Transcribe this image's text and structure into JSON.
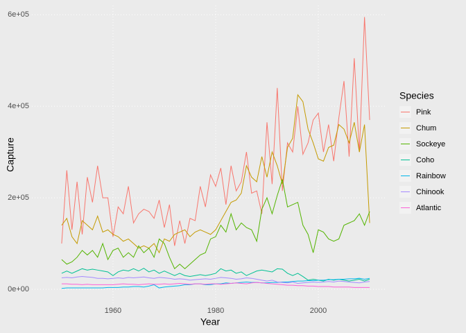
{
  "chart_data": {
    "type": "line",
    "x_label": "Year",
    "y_label": "Capture",
    "legend_title": "Species",
    "legend": "right",
    "grid": true,
    "xlim": [
      1944.2,
      2013.1
    ],
    "xticks": [
      1960,
      1980,
      2000
    ],
    "ylim": [
      -31800,
      620000
    ],
    "yticks": [
      {
        "value": 0,
        "label": "0e+00"
      },
      {
        "value": 200000,
        "label": "2e+05"
      },
      {
        "value": 400000,
        "label": "4e+05"
      },
      {
        "value": 600000,
        "label": "6e+05"
      }
    ],
    "x": [
      1950,
      1951,
      1952,
      1953,
      1954,
      1955,
      1956,
      1957,
      1958,
      1959,
      1960,
      1961,
      1962,
      1963,
      1964,
      1965,
      1966,
      1967,
      1968,
      1969,
      1970,
      1971,
      1972,
      1973,
      1974,
      1975,
      1976,
      1977,
      1978,
      1979,
      1980,
      1981,
      1982,
      1983,
      1984,
      1985,
      1986,
      1987,
      1988,
      1989,
      1990,
      1991,
      1992,
      1993,
      1994,
      1995,
      1996,
      1997,
      1998,
      1999,
      2000,
      2001,
      2002,
      2003,
      2004,
      2005,
      2006,
      2007,
      2008,
      2009,
      2010
    ],
    "series": [
      {
        "name": "Pink",
        "color": "#F8766D",
        "values": [
          100000,
          260000,
          130000,
          235000,
          120000,
          245000,
          190000,
          270000,
          200000,
          200000,
          115000,
          180000,
          165000,
          225000,
          145000,
          165000,
          175000,
          170000,
          155000,
          195000,
          135000,
          185000,
          95000,
          150000,
          100000,
          155000,
          150000,
          225000,
          180000,
          250000,
          225000,
          265000,
          185000,
          270000,
          215000,
          235000,
          300000,
          210000,
          215000,
          165000,
          365000,
          230000,
          440000,
          215000,
          320000,
          300000,
          400000,
          295000,
          320000,
          370000,
          385000,
          300000,
          360000,
          280000,
          375000,
          455000,
          290000,
          505000,
          300000,
          595000,
          370000
        ]
      },
      {
        "name": "Chum",
        "color": "#C49A00",
        "values": [
          140000,
          155000,
          115000,
          100000,
          150000,
          140000,
          130000,
          160000,
          125000,
          130000,
          120000,
          115000,
          105000,
          110000,
          100000,
          90000,
          95000,
          90000,
          100000,
          80000,
          110000,
          105000,
          120000,
          125000,
          130000,
          115000,
          125000,
          130000,
          125000,
          120000,
          130000,
          150000,
          170000,
          190000,
          195000,
          210000,
          270000,
          245000,
          235000,
          290000,
          245000,
          300000,
          270000,
          230000,
          310000,
          330000,
          425000,
          410000,
          350000,
          320000,
          285000,
          280000,
          310000,
          315000,
          360000,
          350000,
          320000,
          365000,
          300000,
          360000,
          145000
        ]
      },
      {
        "name": "Sockeye",
        "color": "#53B400",
        "values": [
          65000,
          55000,
          60000,
          70000,
          85000,
          75000,
          85000,
          70000,
          100000,
          65000,
          85000,
          90000,
          70000,
          80000,
          70000,
          95000,
          80000,
          90000,
          70000,
          110000,
          100000,
          70000,
          45000,
          55000,
          45000,
          55000,
          65000,
          75000,
          80000,
          110000,
          115000,
          140000,
          125000,
          165000,
          130000,
          145000,
          135000,
          130000,
          105000,
          175000,
          200000,
          165000,
          205000,
          240000,
          180000,
          185000,
          190000,
          140000,
          120000,
          80000,
          130000,
          125000,
          110000,
          105000,
          110000,
          140000,
          145000,
          150000,
          165000,
          140000,
          170000
        ]
      },
      {
        "name": "Coho",
        "color": "#00C094",
        "values": [
          35000,
          40000,
          35000,
          40000,
          45000,
          42000,
          44000,
          42000,
          40000,
          38000,
          30000,
          38000,
          42000,
          40000,
          45000,
          40000,
          46000,
          38000,
          42000,
          35000,
          40000,
          35000,
          30000,
          35000,
          30000,
          28000,
          30000,
          32000,
          30000,
          32000,
          35000,
          45000,
          40000,
          42000,
          35000,
          38000,
          30000,
          35000,
          40000,
          42000,
          40000,
          38000,
          45000,
          44000,
          35000,
          30000,
          35000,
          28000,
          20000,
          22000,
          20000,
          18000,
          22000,
          20000,
          22000,
          20000,
          18000,
          20000,
          22000,
          18000,
          22000
        ]
      },
      {
        "name": "Rainbow",
        "color": "#00B6EB",
        "values": [
          2000,
          3000,
          3000,
          3000,
          3000,
          3000,
          3000,
          3000,
          3000,
          4000,
          4000,
          4000,
          5000,
          5000,
          6000,
          6000,
          5000,
          7000,
          10000,
          3000,
          5000,
          6000,
          7000,
          8000,
          10000,
          10000,
          12000,
          12000,
          10000,
          10000,
          12000,
          12000,
          14000,
          13000,
          14000,
          15000,
          16000,
          15000,
          15000,
          14000,
          14000,
          15000,
          15000,
          16000,
          16000,
          17000,
          18000,
          18000,
          19000,
          19000,
          20000,
          20000,
          21000,
          21000,
          22000,
          22000,
          23000,
          23000,
          24000,
          22000,
          24000
        ]
      },
      {
        "name": "Chinook",
        "color": "#A58AFF",
        "values": [
          25000,
          26000,
          25000,
          27000,
          28000,
          27000,
          26000,
          24000,
          24000,
          23000,
          24000,
          25000,
          24000,
          26000,
          25000,
          26000,
          27000,
          25000,
          24000,
          26000,
          25000,
          24000,
          22000,
          23000,
          22000,
          20000,
          21000,
          22000,
          23000,
          22000,
          24000,
          26000,
          25000,
          24000,
          22000,
          23000,
          25000,
          24000,
          22000,
          20000,
          18000,
          20000,
          16000,
          15000,
          14000,
          16000,
          13000,
          14000,
          15000,
          16000,
          15000,
          16000,
          17000,
          16000,
          18000,
          17000,
          16000,
          15000,
          14000,
          16000,
          17000
        ]
      },
      {
        "name": "Atlantic",
        "color": "#FB61D7",
        "values": [
          12000,
          12000,
          11000,
          11000,
          10000,
          11000,
          10000,
          10000,
          10000,
          10000,
          10000,
          11000,
          12000,
          11000,
          11000,
          10000,
          11000,
          12000,
          11000,
          11000,
          12000,
          11000,
          12000,
          13000,
          12000,
          11000,
          12000,
          12000,
          11000,
          12000,
          12000,
          11000,
          12000,
          13000,
          14000,
          13000,
          12000,
          14000,
          15000,
          14000,
          13000,
          12000,
          11000,
          10000,
          9000,
          9000,
          8000,
          8000,
          7000,
          7000,
          6000,
          6000,
          6000,
          5000,
          5000,
          5000,
          5000,
          4000,
          4000,
          4000,
          4000
        ]
      }
    ]
  }
}
